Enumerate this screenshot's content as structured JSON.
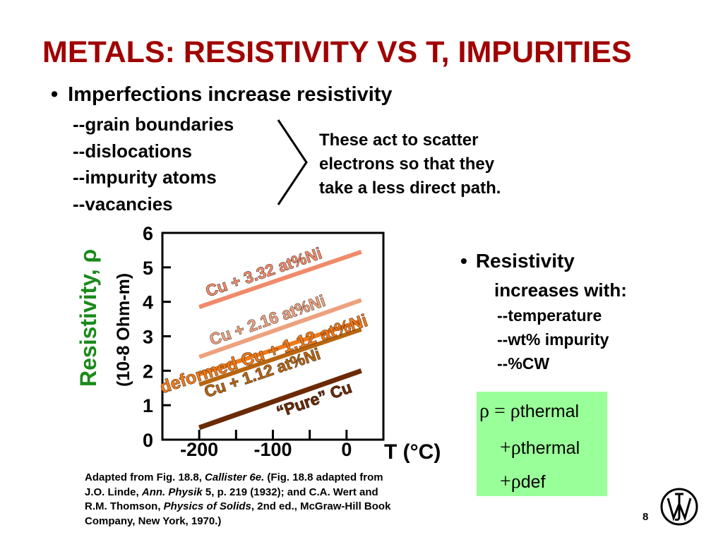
{
  "title": "METALS:  RESISTIVITY VS T, IMPURITIES",
  "bullet_main": "Imperfections increase resistivity",
  "imperfections": [
    "--grain boundaries",
    "--dislocations",
    "--impurity atoms",
    "--vacancies"
  ],
  "scatter_note": [
    "These act to scatter",
    "electrons so that they",
    "take a less direct path."
  ],
  "bullet_right": "Resistivity",
  "increases_with": "increases with:",
  "factors": [
    "--temperature",
    "--wt% impurity",
    "--%CW"
  ],
  "formula": {
    "line1_prefix": "ρ = ρ",
    "line1_sub": "thermal",
    "line2_prefix": "+ρ",
    "line2_sub": "thermal",
    "line3_prefix": "+ρ",
    "line3_sub": "def"
  },
  "caption": {
    "l1a": "Adapted from Fig. 18.8, ",
    "l1b": "Callister 6e.",
    "l1c": "  (Fig. 18.8 adapted from",
    "l2a": "J.O. Linde, ",
    "l2b": "Ann. Physik",
    "l2c": " 5, p. 219 (1932); and C.A. Wert and",
    "l3a": "R.M. Thomson, ",
    "l3b": "Physics of Solids",
    "l3c": ", 2nd ed., McGraw-Hill Book",
    "l4": "Company, New York, 1970.)"
  },
  "page_number": "8",
  "colors": {
    "title": "#a00000",
    "ylabel": "#1a8a1a",
    "formula_bg": "#99ff99",
    "pure": "#6b2a05",
    "cu112": "#b8650f",
    "deformed": "#ee7a1a",
    "cu216": "#eda17e",
    "cu332": "#f08a6a"
  },
  "chart_data": {
    "type": "line",
    "ylabel_main": "Resistivity, ρ",
    "ylabel_unit": "(10-8 Ohm-m)",
    "xlabel": "T (°C)",
    "x_ticks": [
      "-200",
      "-100",
      "0"
    ],
    "y_ticks": [
      "0",
      "1",
      "2",
      "3",
      "4",
      "5",
      "6"
    ],
    "xlim": [
      -250,
      50
    ],
    "ylim": [
      0,
      6
    ],
    "series": [
      {
        "name": "“Pure” Cu",
        "x": [
          -200,
          20
        ],
        "y": [
          0.35,
          2.0
        ]
      },
      {
        "name": "Cu + 1.12 at%Ni",
        "x": [
          -200,
          20
        ],
        "y": [
          1.6,
          3.2
        ]
      },
      {
        "name": "deformed Cu + 1.12 at%Ni",
        "x": [
          -200,
          20
        ],
        "y": [
          1.9,
          3.45
        ]
      },
      {
        "name": "Cu + 2.16 at%Ni",
        "x": [
          -200,
          20
        ],
        "y": [
          2.4,
          4.05
        ]
      },
      {
        "name": "Cu + 3.32 at%Ni",
        "x": [
          -200,
          20
        ],
        "y": [
          3.85,
          5.45
        ]
      }
    ]
  }
}
